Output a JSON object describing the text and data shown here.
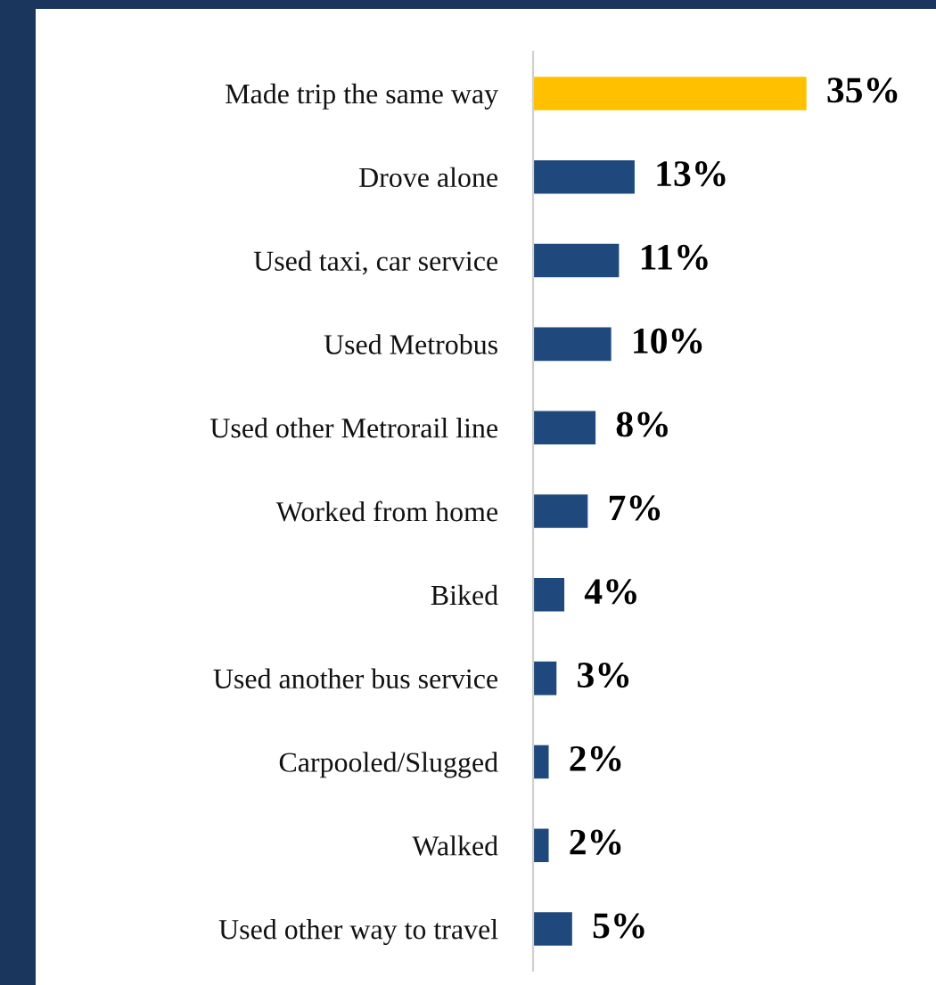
{
  "chart_data": {
    "type": "bar",
    "orientation": "horizontal",
    "categories": [
      "Made trip the same way",
      "Drove alone",
      "Used taxi, car service",
      "Used Metrobus",
      "Used other Metrorail line",
      "Worked from home",
      "Biked",
      "Used another bus service",
      "Carpooled/Slugged",
      "Walked",
      "Used other way to travel"
    ],
    "values": [
      35,
      13,
      11,
      10,
      8,
      7,
      4,
      3,
      2,
      2,
      5
    ],
    "colors": [
      "#ffc000",
      "#1f497d",
      "#1f497d",
      "#1f497d",
      "#1f497d",
      "#1f497d",
      "#1f497d",
      "#1f497d",
      "#1f497d",
      "#1f497d",
      "#1f497d"
    ],
    "value_labels": [
      "35%",
      "13%",
      "11%",
      "10%",
      "8%",
      "7%",
      "4%",
      "3%",
      "2%",
      "2%",
      "5%"
    ],
    "grid": false,
    "legend": false
  }
}
